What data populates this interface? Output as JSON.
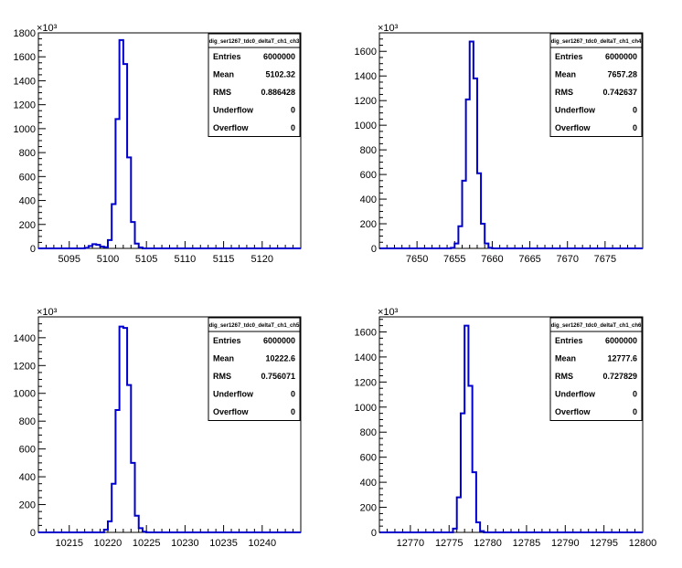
{
  "colors": {
    "histogram_line": "#0000cc",
    "frame": "#000000",
    "background": "#ffffff"
  },
  "chart_data": [
    {
      "type": "histogram",
      "title": "dig_ser1267_tdc0_deltaT_ch1_ch3",
      "exponent_label": "×10³",
      "xlim": [
        5091,
        5125
      ],
      "ylim": [
        0,
        1800
      ],
      "xticks": [
        "5095",
        "5100",
        "5105",
        "5110",
        "5115",
        "5120"
      ],
      "yticks": [
        "0",
        "200",
        "400",
        "600",
        "800",
        "1000",
        "1200",
        "1400",
        "1600",
        "1800"
      ],
      "bin_edges": [
        5097,
        5097.5,
        5098,
        5098.5,
        5099,
        5099.5,
        5100,
        5100.5,
        5101,
        5101.5,
        5102,
        5102.5,
        5103,
        5103.5,
        5104,
        5104.5,
        5105
      ],
      "values": [
        5,
        20,
        35,
        30,
        15,
        10,
        70,
        370,
        1080,
        1740,
        1540,
        760,
        220,
        40,
        8,
        0
      ],
      "stats": [
        {
          "label": "Entries",
          "value": "6000000"
        },
        {
          "label": "Mean",
          "value": "5102.32"
        },
        {
          "label": "RMS",
          "value": "0.886428"
        },
        {
          "label": "Underflow",
          "value": "0"
        },
        {
          "label": "Overflow",
          "value": "0"
        }
      ]
    },
    {
      "type": "histogram",
      "title": "dig_ser1267_tdc0_deltaT_ch1_ch4",
      "exponent_label": "×10³",
      "xlim": [
        7645,
        7680
      ],
      "ylim": [
        0,
        1750
      ],
      "xticks": [
        "7650",
        "7655",
        "7660",
        "7665",
        "7670",
        "7675"
      ],
      "yticks": [
        "0",
        "200",
        "400",
        "600",
        "800",
        "1000",
        "1200",
        "1400",
        "1600"
      ],
      "bin_edges": [
        7654.5,
        7655,
        7655.5,
        7656,
        7656.5,
        7657,
        7657.5,
        7658,
        7658.5,
        7659,
        7659.5,
        7660
      ],
      "values": [
        5,
        40,
        180,
        550,
        1210,
        1680,
        1380,
        610,
        200,
        40,
        5
      ],
      "stats": [
        {
          "label": "Entries",
          "value": "6000000"
        },
        {
          "label": "Mean",
          "value": "7657.28"
        },
        {
          "label": "RMS",
          "value": "0.742637"
        },
        {
          "label": "Underflow",
          "value": "0"
        },
        {
          "label": "Overflow",
          "value": "0"
        }
      ]
    },
    {
      "type": "histogram",
      "title": "dig_ser1267_tdc0_deltaT_ch1_ch5",
      "exponent_label": "×10³",
      "xlim": [
        10211,
        10245
      ],
      "ylim": [
        0,
        1550
      ],
      "xticks": [
        "10215",
        "10220",
        "10225",
        "10230",
        "10235",
        "10240"
      ],
      "yticks": [
        "0",
        "200",
        "400",
        "600",
        "800",
        "1000",
        "1200",
        "1400"
      ],
      "bin_edges": [
        10219.5,
        10220,
        10220.5,
        10221,
        10221.5,
        10222,
        10222.5,
        10223,
        10223.5,
        10224,
        10224.5,
        10225
      ],
      "values": [
        20,
        80,
        350,
        880,
        1480,
        1470,
        1060,
        500,
        120,
        30,
        5
      ],
      "stats": [
        {
          "label": "Entries",
          "value": "6000000"
        },
        {
          "label": "Mean",
          "value": "10222.6"
        },
        {
          "label": "RMS",
          "value": "0.756071"
        },
        {
          "label": "Underflow",
          "value": "0"
        },
        {
          "label": "Overflow",
          "value": "0"
        }
      ]
    },
    {
      "type": "histogram",
      "title": "dig_ser1267_tdc0_deltaT_ch1_ch6",
      "exponent_label": "×10³",
      "xlim": [
        12766,
        12800
      ],
      "ylim": [
        0,
        1720
      ],
      "xticks": [
        "12770",
        "12775",
        "12780",
        "12785",
        "12790",
        "12795",
        "12800"
      ],
      "yticks": [
        "0",
        "200",
        "400",
        "600",
        "800",
        "1000",
        "1200",
        "1400",
        "1600"
      ],
      "bin_edges": [
        12775.5,
        12776,
        12776.5,
        12777,
        12777.5,
        12778,
        12778.5,
        12779,
        12779.5,
        12780
      ],
      "values": [
        30,
        280,
        950,
        1650,
        1170,
        480,
        80,
        10,
        0
      ],
      "stats": [
        {
          "label": "Entries",
          "value": "6000000"
        },
        {
          "label": "Mean",
          "value": "12777.6"
        },
        {
          "label": "RMS",
          "value": "0.727829"
        },
        {
          "label": "Underflow",
          "value": "0"
        },
        {
          "label": "Overflow",
          "value": "0"
        }
      ]
    }
  ]
}
